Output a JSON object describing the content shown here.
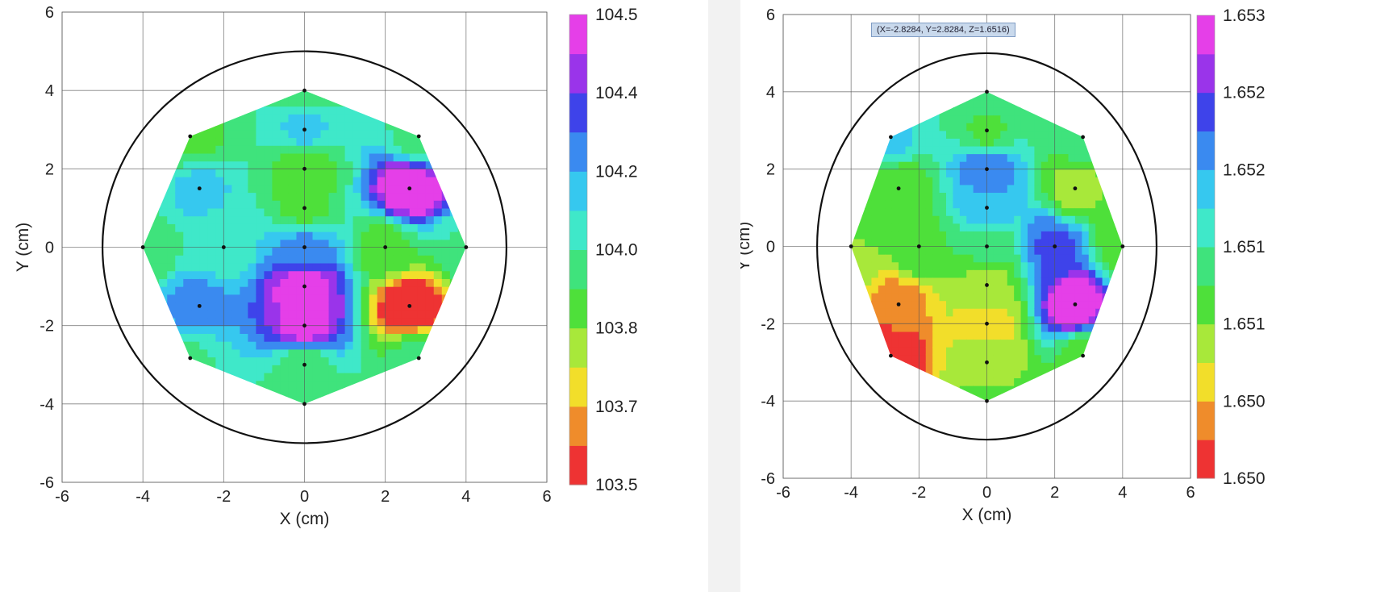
{
  "tooltip": "(X=-2.8284, Y=2.8284, Z=1.6516)",
  "chart_data": [
    {
      "type": "contour",
      "xlabel": "X (cm)",
      "ylabel": "Y (cm)",
      "xlim": [
        -6,
        6
      ],
      "ylim": [
        -6,
        6
      ],
      "xticks": [
        "-6",
        "-4",
        "-2",
        "0",
        "2",
        "4",
        "6"
      ],
      "yticks": [
        "-6",
        "-4",
        "-2",
        "0",
        "2",
        "4",
        "6"
      ],
      "grid": true,
      "wafer_radius": 5,
      "colorbar": {
        "ticks": [
          "103.5",
          "103.7",
          "103.8",
          "104.0",
          "104.2",
          "104.4",
          "104.5"
        ],
        "colors": [
          "#ee3333",
          "#ef8c2b",
          "#f2de2a",
          "#a8e83a",
          "#4ee03a",
          "#3fe37c",
          "#3fe8c9",
          "#36c8ef",
          "#3a8af0",
          "#3e43ea",
          "#9a34ea",
          "#e53fe8"
        ]
      },
      "points": [
        {
          "x": 0,
          "y": 4,
          "z": 103.98
        },
        {
          "x": 0,
          "y": 3,
          "z": 104.12
        },
        {
          "x": 0,
          "y": 2,
          "z": 103.9
        },
        {
          "x": 0,
          "y": 1,
          "z": 103.92
        },
        {
          "x": 0,
          "y": 0,
          "z": 104.2
        },
        {
          "x": 0,
          "y": -1,
          "z": 104.48
        },
        {
          "x": 0,
          "y": -2,
          "z": 104.46
        },
        {
          "x": 0,
          "y": -3,
          "z": 103.98
        },
        {
          "x": 0,
          "y": -4,
          "z": 103.96
        },
        {
          "x": 2,
          "y": 0,
          "z": 103.92
        },
        {
          "x": -2,
          "y": 0,
          "z": 104.05
        },
        {
          "x": 4,
          "y": 0,
          "z": 104.02
        },
        {
          "x": -4,
          "y": 0,
          "z": 103.95
        },
        {
          "x": 2.6,
          "y": 1.5,
          "z": 104.5
        },
        {
          "x": 2.6,
          "y": -1.5,
          "z": 103.55
        },
        {
          "x": -2.6,
          "y": 1.5,
          "z": 104.12
        },
        {
          "x": -2.6,
          "y": -1.5,
          "z": 104.22
        },
        {
          "x": 2.83,
          "y": 2.83,
          "z": 104.0
        },
        {
          "x": -2.83,
          "y": 2.83,
          "z": 103.92
        },
        {
          "x": 2.83,
          "y": -2.83,
          "z": 103.98
        },
        {
          "x": -2.83,
          "y": -2.83,
          "z": 104.02
        }
      ]
    },
    {
      "type": "contour",
      "xlabel": "X (cm)",
      "ylabel": "Y (cm)",
      "xlim": [
        -6,
        6
      ],
      "ylim": [
        -6,
        6
      ],
      "xticks": [
        "-6",
        "-4",
        "-2",
        "0",
        "2",
        "4",
        "6"
      ],
      "yticks": [
        "-6",
        "-4",
        "-2",
        "0",
        "2",
        "4",
        "6"
      ],
      "grid": true,
      "wafer_radius": 5,
      "colorbar": {
        "ticks": [
          "1.650",
          "1.650",
          "1.651",
          "1.651",
          "1.652",
          "1.652",
          "1.653"
        ],
        "colors": [
          "#ee3333",
          "#ef8c2b",
          "#f2de2a",
          "#a8e83a",
          "#4ee03a",
          "#3fe37c",
          "#3fe8c9",
          "#36c8ef",
          "#3a8af0",
          "#3e43ea",
          "#9a34ea",
          "#e53fe8"
        ]
      },
      "points": [
        {
          "x": 0,
          "y": 4,
          "z": 1.6512
        },
        {
          "x": 0,
          "y": 3,
          "z": 1.651
        },
        {
          "x": 0,
          "y": 2,
          "z": 1.652
        },
        {
          "x": 0,
          "y": 1,
          "z": 1.6517
        },
        {
          "x": 0,
          "y": 0,
          "z": 1.6511
        },
        {
          "x": 0,
          "y": -1,
          "z": 1.6507
        },
        {
          "x": 0,
          "y": -2,
          "z": 1.6504
        },
        {
          "x": 0,
          "y": -3,
          "z": 1.6507
        },
        {
          "x": 0,
          "y": -4,
          "z": 1.6509
        },
        {
          "x": 2,
          "y": 0,
          "z": 1.6521
        },
        {
          "x": -2,
          "y": 0,
          "z": 1.651
        },
        {
          "x": 4,
          "y": 0,
          "z": 1.6509
        },
        {
          "x": -4,
          "y": 0,
          "z": 1.6508
        },
        {
          "x": 2.6,
          "y": 1.5,
          "z": 1.6507
        },
        {
          "x": 2.6,
          "y": -1.5,
          "z": 1.6528
        },
        {
          "x": -2.6,
          "y": 1.5,
          "z": 1.6508
        },
        {
          "x": -2.6,
          "y": -1.5,
          "z": 1.6502
        },
        {
          "x": 2.83,
          "y": 2.83,
          "z": 1.6512
        },
        {
          "x": -2.83,
          "y": 2.83,
          "z": 1.6516
        },
        {
          "x": 2.83,
          "y": -2.83,
          "z": 1.6509
        },
        {
          "x": -2.83,
          "y": -2.83,
          "z": 1.6498
        }
      ]
    }
  ]
}
